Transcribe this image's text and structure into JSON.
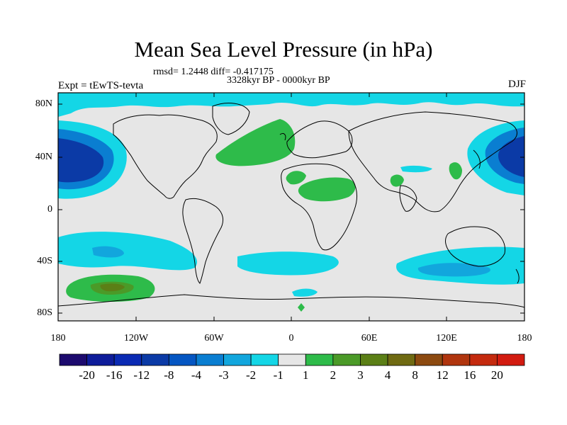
{
  "title": "Mean Sea Level Pressure (in hPa)",
  "stats": "rmsd= 1.2448 diff= -0.417175",
  "period": "3328kyr BP - 0000kyr BP",
  "experiment": "Expt = tEwTS-tevta",
  "season": "DJF",
  "axes": {
    "lat_labels": [
      "80N",
      "40N",
      "0",
      "40S",
      "80S"
    ],
    "lon_labels": [
      "180",
      "120W",
      "60W",
      "0",
      "60E",
      "120E",
      "180"
    ]
  },
  "colorbar": {
    "labels": [
      "-20",
      "-16",
      "-12",
      "-8",
      "-4",
      "-3",
      "-2",
      "-1",
      "1",
      "2",
      "3",
      "4",
      "8",
      "12",
      "16",
      "20"
    ],
    "colors": [
      "#1c0a6e",
      "#0e1c9a",
      "#0a2ab3",
      "#0b3aa6",
      "#0556c2",
      "#0a7ed1",
      "#12a6dd",
      "#14d6e6",
      "#e6e6e6",
      "#2ebb4a",
      "#4b9a28",
      "#5b7f16",
      "#6f6a12",
      "#8c4a10",
      "#b0350e",
      "#c42a0e",
      "#d21b10"
    ]
  },
  "colors": {
    "neutral": "#e6e6e6",
    "cyan": "#14d6e6",
    "mid_blue": "#12a6dd",
    "blue": "#0a7ed1",
    "dark_blue": "#0556c2",
    "green": "#2ebb4a",
    "dark_green": "#4b9a28",
    "olive": "#5b7f16"
  }
}
